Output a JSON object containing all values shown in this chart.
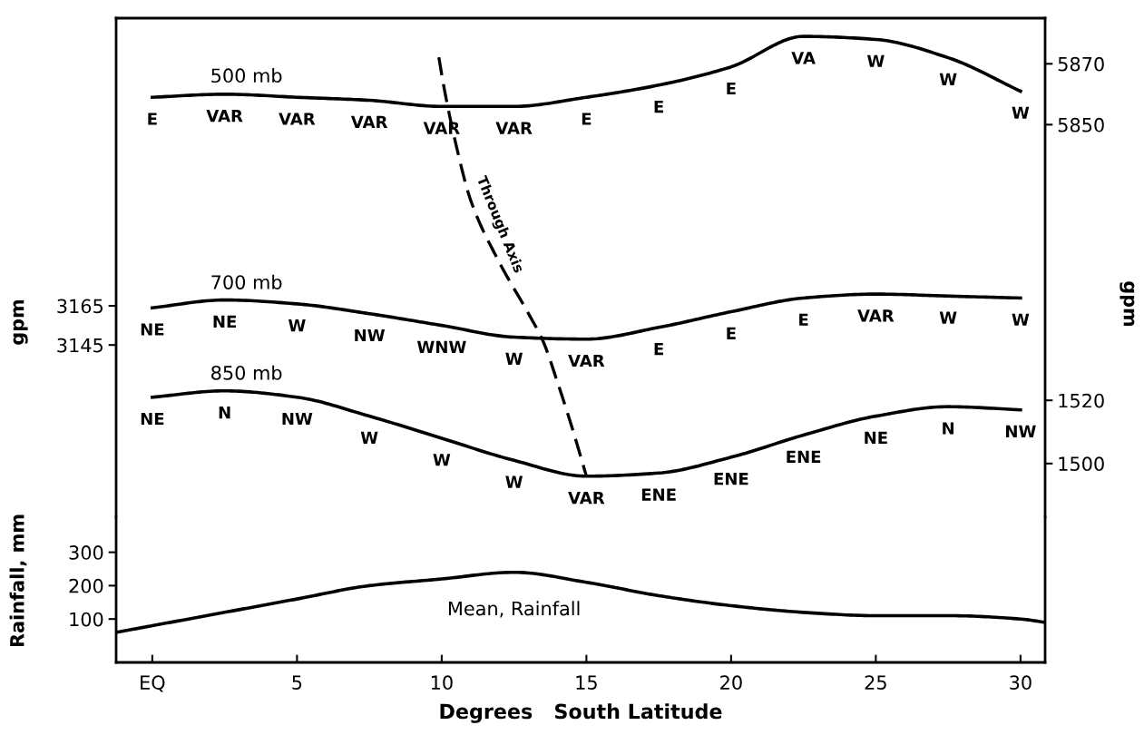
{
  "chart_data": [
    {
      "type": "line",
      "ylabel": "gpm",
      "y2label": "gpm",
      "x": [
        0,
        2.5,
        5,
        7.5,
        10,
        12.5,
        15,
        17.5,
        20,
        22.5,
        25,
        27.5,
        30
      ],
      "xlim": [
        -1.25,
        30.85
      ],
      "ylim": [
        3057,
        3312
      ],
      "yticks": [
        3145,
        3165
      ],
      "y2lim": [
        5721,
        5885
      ],
      "y2ticks": [
        5850,
        5870
      ],
      "y3lim": [
        1483,
        1641
      ],
      "y3ticks": [
        1500,
        1520
      ],
      "tick_labels": "y",
      "grid": false,
      "legend": false,
      "marker": "none",
      "series": [
        {
          "name": "500 mb",
          "axis": "y2",
          "color": "#000000",
          "values": [
            5859,
            5860,
            5859,
            5858,
            5856,
            5856,
            5859,
            5863,
            5869,
            5879,
            5878,
            5872,
            5861
          ],
          "value_labels": [
            "E",
            "VAR",
            "VAR",
            "VAR",
            "VAR",
            "VAR",
            "E",
            "E",
            "E",
            "VA",
            "W",
            "W",
            "W"
          ]
        },
        {
          "name": "700 mb",
          "axis": "y",
          "color": "#000000",
          "values": [
            3164,
            3168,
            3166,
            3161,
            3155,
            3149,
            3148,
            3154,
            3162,
            3169,
            3171,
            3170,
            3169
          ],
          "value_labels": [
            "NE",
            "NE",
            "W",
            "NW",
            "WNW",
            "W",
            "VAR",
            "E",
            "E",
            "E",
            "VAR",
            "W",
            "W"
          ]
        },
        {
          "name": "850 mb",
          "axis": "y3",
          "color": "#000000",
          "values": [
            1521,
            1523,
            1521,
            1515,
            1508,
            1501,
            1496,
            1497,
            1502,
            1509,
            1515,
            1518,
            1517
          ],
          "value_labels": [
            "NE",
            "N",
            "NW",
            "W",
            "W",
            "W",
            "VAR",
            "ENE",
            "ENE",
            "ENE",
            "NE",
            "N",
            "NW"
          ]
        },
        {
          "axis": "y",
          "color": "#000000",
          "line_style": "dashed",
          "x": [
            9.9,
            10.1,
            10.5,
            11,
            12,
            13,
            13.5,
            14,
            14.5,
            15
          ],
          "values": [
            3292,
            3275,
            3247,
            3219,
            3187,
            3161,
            3147,
            3126,
            3103,
            3078
          ]
        }
      ],
      "annotations": [
        "Through Axis"
      ]
    },
    {
      "type": "line",
      "xlabel": "Degrees   South Latitude",
      "ylabel": "Rainfall, mm",
      "xlim": [
        -1.25,
        30.85
      ],
      "xticks": [
        {
          "value": 0,
          "label": "EQ"
        },
        5,
        10,
        15,
        20,
        25,
        30
      ],
      "ylim": [
        -30,
        405
      ],
      "yticks": [
        100,
        200,
        300
      ],
      "grid": false,
      "legend": false,
      "marker": "none",
      "series": [
        {
          "name": "Mean, Rainfall",
          "color": "#000000",
          "x": [
            -1.25,
            0,
            2.5,
            5,
            7.5,
            10,
            12.5,
            15,
            17.5,
            20,
            22.5,
            25,
            27.5,
            30,
            30.85
          ],
          "values": [
            60,
            80,
            120,
            160,
            200,
            220,
            240,
            210,
            170,
            140,
            120,
            110,
            110,
            100,
            90
          ]
        }
      ]
    }
  ]
}
